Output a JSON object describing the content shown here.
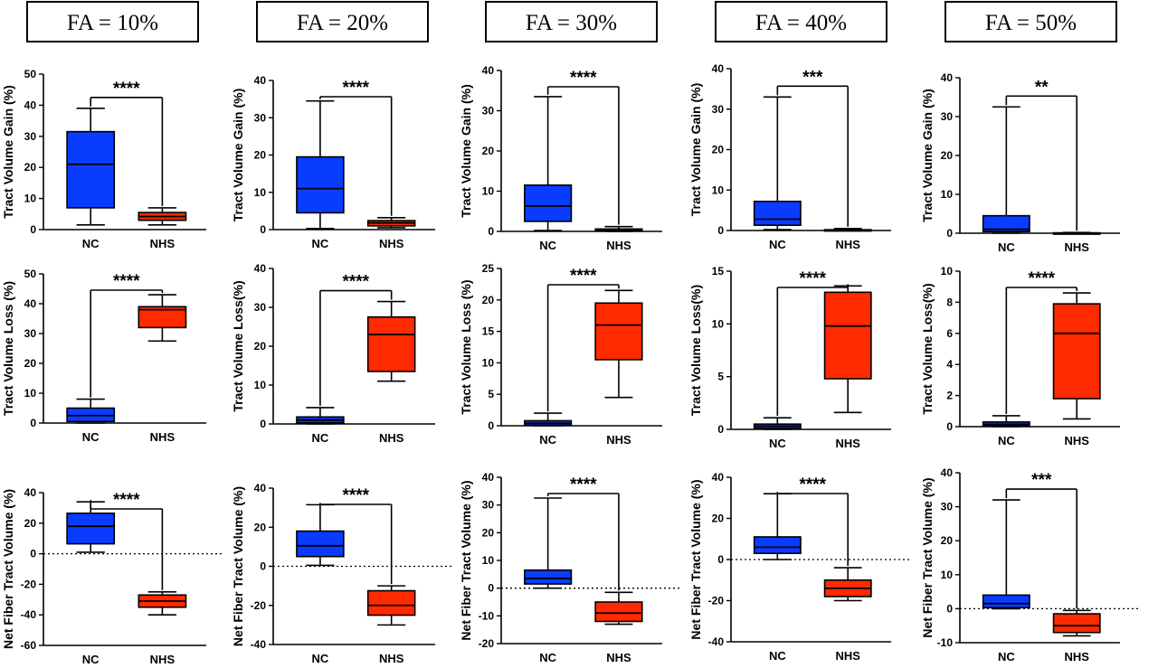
{
  "headers": [
    "FA = 10%",
    "FA = 20%",
    "FA = 30%",
    "FA = 40%",
    "FA = 50%"
  ],
  "chart_data": [
    {
      "type": "box",
      "col": 0,
      "row": 0,
      "ylabel": "Tract Volume Gain (%)",
      "ylim": [
        0,
        50
      ],
      "yticks": [
        0,
        10,
        20,
        30,
        40,
        50
      ],
      "ytick_labels": [
        "0",
        "10",
        "20",
        "30",
        "40",
        "50"
      ],
      "categories": [
        "NC",
        "NHS"
      ],
      "zero_line": false,
      "significance": "****",
      "boxes": [
        {
          "name": "NC",
          "color": "#0a3cff",
          "min": 1.5,
          "q1": 7,
          "median": 21,
          "q3": 31.5,
          "max": 39
        },
        {
          "name": "NHS",
          "color": "#ff2a00",
          "min": 1.5,
          "q1": 3,
          "median": 4.2,
          "q3": 5.5,
          "max": 7
        }
      ]
    },
    {
      "type": "box",
      "col": 1,
      "row": 0,
      "ylabel": "Tract Volume Gain (%)",
      "ylim": [
        0,
        40
      ],
      "yticks": [
        0,
        10,
        20,
        30,
        40
      ],
      "ytick_labels": [
        "0",
        "10",
        "20",
        "30",
        "40"
      ],
      "categories": [
        "NC",
        "NHS"
      ],
      "zero_line": false,
      "significance": "****",
      "boxes": [
        {
          "name": "NC",
          "color": "#0a3cff",
          "min": 0.3,
          "q1": 4.5,
          "median": 11,
          "q3": 19.5,
          "max": 34.5
        },
        {
          "name": "NHS",
          "color": "#ff2a00",
          "min": 0.5,
          "q1": 1,
          "median": 1.8,
          "q3": 2.4,
          "max": 3.2
        }
      ]
    },
    {
      "type": "box",
      "col": 2,
      "row": 0,
      "ylabel": "Tract Volume Gain (%)",
      "ylim": [
        0,
        40
      ],
      "yticks": [
        0,
        10,
        20,
        30,
        40
      ],
      "ytick_labels": [
        "0",
        "10",
        "20",
        "30",
        "40"
      ],
      "categories": [
        "NC",
        "NHS"
      ],
      "zero_line": false,
      "significance": "****",
      "boxes": [
        {
          "name": "NC",
          "color": "#0a3cff",
          "min": 0.2,
          "q1": 2.5,
          "median": 6.3,
          "q3": 11.5,
          "max": 33.5
        },
        {
          "name": "NHS",
          "color": "#ff2a00",
          "min": 0,
          "q1": 0.1,
          "median": 0.3,
          "q3": 0.6,
          "max": 1.2
        }
      ]
    },
    {
      "type": "box",
      "col": 3,
      "row": 0,
      "ylabel": "Tract Volume Gain (%)",
      "ylim": [
        0,
        40
      ],
      "yticks": [
        0,
        10,
        20,
        30,
        40
      ],
      "ytick_labels": [
        "0",
        "10",
        "20",
        "30",
        "40"
      ],
      "categories": [
        "NC",
        "NHS"
      ],
      "zero_line": false,
      "significance": "***",
      "boxes": [
        {
          "name": "NC",
          "color": "#0a3cff",
          "min": 0.2,
          "q1": 1.3,
          "median": 2.8,
          "q3": 7.2,
          "max": 33
        },
        {
          "name": "NHS",
          "color": "#ff2a00",
          "min": 0,
          "q1": 0,
          "median": 0.1,
          "q3": 0.2,
          "max": 0.5
        }
      ]
    },
    {
      "type": "box",
      "col": 4,
      "row": 0,
      "ylabel": "Tract Volume Gain (%)",
      "ylim": [
        0,
        40
      ],
      "yticks": [
        0,
        10,
        20,
        30,
        40
      ],
      "ytick_labels": [
        "0",
        "10",
        "20",
        "30",
        "40"
      ],
      "categories": [
        "NC",
        "NHS"
      ],
      "zero_line": false,
      "significance": "**",
      "boxes": [
        {
          "name": "NC",
          "color": "#0a3cff",
          "min": 0,
          "q1": 0.4,
          "median": 1,
          "q3": 4.5,
          "max": 32.5
        },
        {
          "name": "NHS",
          "color": "#ff2a00",
          "min": 0,
          "q1": 0,
          "median": 0,
          "q3": 0.1,
          "max": 0.2
        }
      ]
    },
    {
      "type": "box",
      "col": 0,
      "row": 1,
      "ylabel": "Tract Volume Loss (%)",
      "ylim": [
        0,
        50
      ],
      "yticks": [
        0,
        10,
        20,
        30,
        40,
        50
      ],
      "ytick_labels": [
        "0",
        "10",
        "20",
        "30",
        "40",
        "50"
      ],
      "categories": [
        "NC",
        "NHS"
      ],
      "zero_line": false,
      "significance": "****",
      "boxes": [
        {
          "name": "NC",
          "color": "#0a3cff",
          "min": 0,
          "q1": 0.5,
          "median": 2.5,
          "q3": 5,
          "max": 8
        },
        {
          "name": "NHS",
          "color": "#ff2a00",
          "min": 27.5,
          "q1": 32,
          "median": 38,
          "q3": 39,
          "max": 43
        }
      ]
    },
    {
      "type": "box",
      "col": 1,
      "row": 1,
      "ylabel": "Tract Volume Loss(%)",
      "ylim": [
        0,
        40
      ],
      "yticks": [
        0,
        10,
        20,
        30,
        40
      ],
      "ytick_labels": [
        "0",
        "10",
        "20",
        "30",
        "40"
      ],
      "categories": [
        "NC",
        "NHS"
      ],
      "zero_line": false,
      "significance": "****",
      "boxes": [
        {
          "name": "NC",
          "color": "#0a3cff",
          "min": 0,
          "q1": 0.3,
          "median": 1,
          "q3": 1.8,
          "max": 4.2
        },
        {
          "name": "NHS",
          "color": "#ff2a00",
          "min": 11,
          "q1": 13.5,
          "median": 23,
          "q3": 27.5,
          "max": 31.5
        }
      ]
    },
    {
      "type": "box",
      "col": 2,
      "row": 1,
      "ylabel": "Tract Volume Loss (%)",
      "ylim": [
        0,
        25
      ],
      "yticks": [
        0,
        5,
        10,
        15,
        20,
        25
      ],
      "ytick_labels": [
        "0",
        "5",
        "10",
        "15",
        "20",
        "25"
      ],
      "categories": [
        "NC",
        "NHS"
      ],
      "zero_line": false,
      "significance": "****",
      "boxes": [
        {
          "name": "NC",
          "color": "#0a3cff",
          "min": 0,
          "q1": 0.1,
          "median": 0.4,
          "q3": 0.8,
          "max": 2
        },
        {
          "name": "NHS",
          "color": "#ff2a00",
          "min": 4.5,
          "q1": 10.5,
          "median": 16,
          "q3": 19.5,
          "max": 21.5
        }
      ]
    },
    {
      "type": "box",
      "col": 3,
      "row": 1,
      "ylabel": "Tract Volume Loss(%)",
      "ylim": [
        0,
        15
      ],
      "yticks": [
        0,
        5,
        10,
        15
      ],
      "ytick_labels": [
        "0",
        "5",
        "10",
        "15"
      ],
      "categories": [
        "NC",
        "NHS"
      ],
      "zero_line": false,
      "significance": "****",
      "boxes": [
        {
          "name": "NC",
          "color": "#0a3cff",
          "min": 0,
          "q1": 0.1,
          "median": 0.3,
          "q3": 0.5,
          "max": 1.1
        },
        {
          "name": "NHS",
          "color": "#ff2a00",
          "min": 1.6,
          "q1": 4.8,
          "median": 9.8,
          "q3": 13,
          "max": 13.6
        }
      ]
    },
    {
      "type": "box",
      "col": 4,
      "row": 1,
      "ylabel": "Tract Volume Loss(%)",
      "ylim": [
        0,
        10
      ],
      "yticks": [
        0,
        2,
        4,
        6,
        8,
        10
      ],
      "ytick_labels": [
        "0",
        "2",
        "4",
        "6",
        "8",
        "10"
      ],
      "categories": [
        "NC",
        "NHS"
      ],
      "zero_line": false,
      "significance": "****",
      "boxes": [
        {
          "name": "NC",
          "color": "#0a3cff",
          "min": 0,
          "q1": 0.05,
          "median": 0.15,
          "q3": 0.3,
          "max": 0.7
        },
        {
          "name": "NHS",
          "color": "#ff2a00",
          "min": 0.5,
          "q1": 1.8,
          "median": 6,
          "q3": 7.9,
          "max": 8.6
        }
      ]
    },
    {
      "type": "box",
      "col": 0,
      "row": 2,
      "ylabel": "Net Fiber Tract Volume (%)",
      "ylim": [
        -60,
        40
      ],
      "yticks": [
        -60,
        -40,
        -20,
        0,
        20,
        40
      ],
      "ytick_labels": [
        "-60",
        "-40",
        "-20",
        "0",
        "20",
        "40"
      ],
      "categories": [
        "NC",
        "NHS"
      ],
      "zero_line": true,
      "significance": "****",
      "boxes": [
        {
          "name": "NC",
          "color": "#0a3cff",
          "min": 1,
          "q1": 6.5,
          "median": 18,
          "q3": 26.5,
          "max": 34
        },
        {
          "name": "NHS",
          "color": "#ff2a00",
          "min": -40,
          "q1": -35,
          "median": -31,
          "q3": -27,
          "max": -25
        }
      ]
    },
    {
      "type": "box",
      "col": 1,
      "row": 2,
      "ylabel": "Net Fiber Tract Volume (%)",
      "ylim": [
        -40,
        40
      ],
      "yticks": [
        -40,
        -20,
        0,
        20,
        40
      ],
      "ytick_labels": [
        "-40",
        "-20",
        "0",
        "20",
        "40"
      ],
      "categories": [
        "NC",
        "NHS"
      ],
      "zero_line": true,
      "significance": "****",
      "boxes": [
        {
          "name": "NC",
          "color": "#0a3cff",
          "min": 0.5,
          "q1": 5,
          "median": 10.5,
          "q3": 18,
          "max": 31.5
        },
        {
          "name": "NHS",
          "color": "#ff2a00",
          "min": -30,
          "q1": -25,
          "median": -20,
          "q3": -12.5,
          "max": -10
        }
      ]
    },
    {
      "type": "box",
      "col": 2,
      "row": 2,
      "ylabel": "Net Fiber Tract Volume (%)",
      "ylim": [
        -20,
        40
      ],
      "yticks": [
        -20,
        -10,
        0,
        10,
        20,
        30,
        40
      ],
      "ytick_labels": [
        "-20",
        "-10",
        "0",
        "10",
        "20",
        "30",
        "40"
      ],
      "categories": [
        "NC",
        "NHS"
      ],
      "zero_line": true,
      "significance": "****",
      "boxes": [
        {
          "name": "NC",
          "color": "#0a3cff",
          "min": 0,
          "q1": 1.5,
          "median": 3.5,
          "q3": 6.5,
          "max": 32.5
        },
        {
          "name": "NHS",
          "color": "#ff2a00",
          "min": -13,
          "q1": -12,
          "median": -9,
          "q3": -5,
          "max": -1.5
        }
      ]
    },
    {
      "type": "box",
      "col": 3,
      "row": 2,
      "ylabel": "Net Fiber Tract Volume (%)",
      "ylim": [
        -40,
        40
      ],
      "yticks": [
        -40,
        -20,
        0,
        20,
        40
      ],
      "ytick_labels": [
        "-40",
        "-20",
        "0",
        "20",
        "40"
      ],
      "categories": [
        "NC",
        "NHS"
      ],
      "zero_line": true,
      "significance": "****",
      "boxes": [
        {
          "name": "NC",
          "color": "#0a3cff",
          "min": 0,
          "q1": 3,
          "median": 6,
          "q3": 11,
          "max": 32
        },
        {
          "name": "NHS",
          "color": "#ff2a00",
          "min": -20,
          "q1": -18,
          "median": -14,
          "q3": -10,
          "max": -4
        }
      ]
    },
    {
      "type": "box",
      "col": 4,
      "row": 2,
      "ylabel": "Net Fiber Tract Volume (%)",
      "ylim": [
        -10,
        40
      ],
      "yticks": [
        -10,
        0,
        10,
        20,
        30,
        40
      ],
      "ytick_labels": [
        "-10",
        "0",
        "10",
        "20",
        "30",
        "40"
      ],
      "categories": [
        "NC",
        "NHS"
      ],
      "zero_line": true,
      "significance": "***",
      "boxes": [
        {
          "name": "NC",
          "color": "#0a3cff",
          "min": 0,
          "q1": 0.3,
          "median": 1.5,
          "q3": 4,
          "max": 32
        },
        {
          "name": "NHS",
          "color": "#ff2a00",
          "min": -8,
          "q1": -7,
          "median": -5,
          "q3": -1.5,
          "max": -0.5
        }
      ]
    }
  ]
}
